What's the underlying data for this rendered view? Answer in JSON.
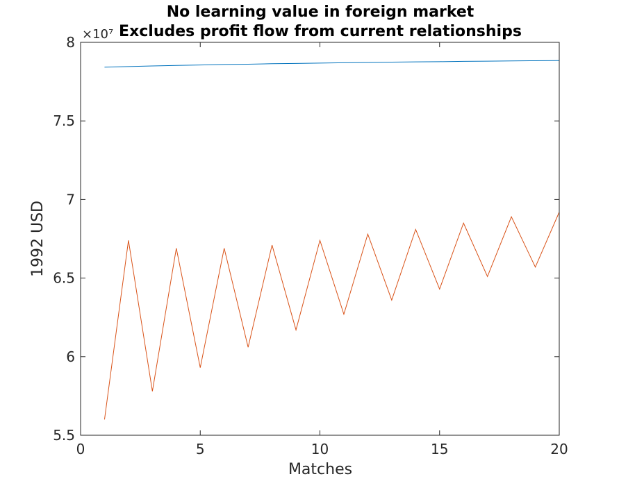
{
  "chart_data": {
    "type": "line",
    "title_lines": [
      "No learning value in foreign market",
      "Excludes profit flow from current relationships"
    ],
    "xlabel": "Matches",
    "ylabel": "1992 USD",
    "y_exponent_label": "×10⁷",
    "xlim": [
      0,
      20
    ],
    "ylim": [
      5.5,
      8
    ],
    "x_ticks": [
      "0",
      "5",
      "10",
      "15",
      "20"
    ],
    "y_ticks": [
      "5.5",
      "6",
      "6.5",
      "7",
      "7.5",
      "8"
    ],
    "x": [
      1,
      2,
      3,
      4,
      5,
      6,
      7,
      8,
      9,
      10,
      11,
      12,
      13,
      14,
      15,
      16,
      17,
      18,
      19,
      20
    ],
    "series": [
      {
        "color": "#0072BD",
        "values": [
          7.842,
          7.846,
          7.85,
          7.853,
          7.856,
          7.859,
          7.861,
          7.864,
          7.866,
          7.868,
          7.87,
          7.872,
          7.874,
          7.876,
          7.877,
          7.879,
          7.88,
          7.882,
          7.883,
          7.884
        ]
      },
      {
        "color": "#D95319",
        "values": [
          5.6,
          6.74,
          5.78,
          6.69,
          5.93,
          6.69,
          6.06,
          6.71,
          6.17,
          6.74,
          6.27,
          6.78,
          6.36,
          6.81,
          6.43,
          6.85,
          6.51,
          6.89,
          6.57,
          6.92
        ]
      }
    ],
    "grid": false,
    "box": true
  }
}
